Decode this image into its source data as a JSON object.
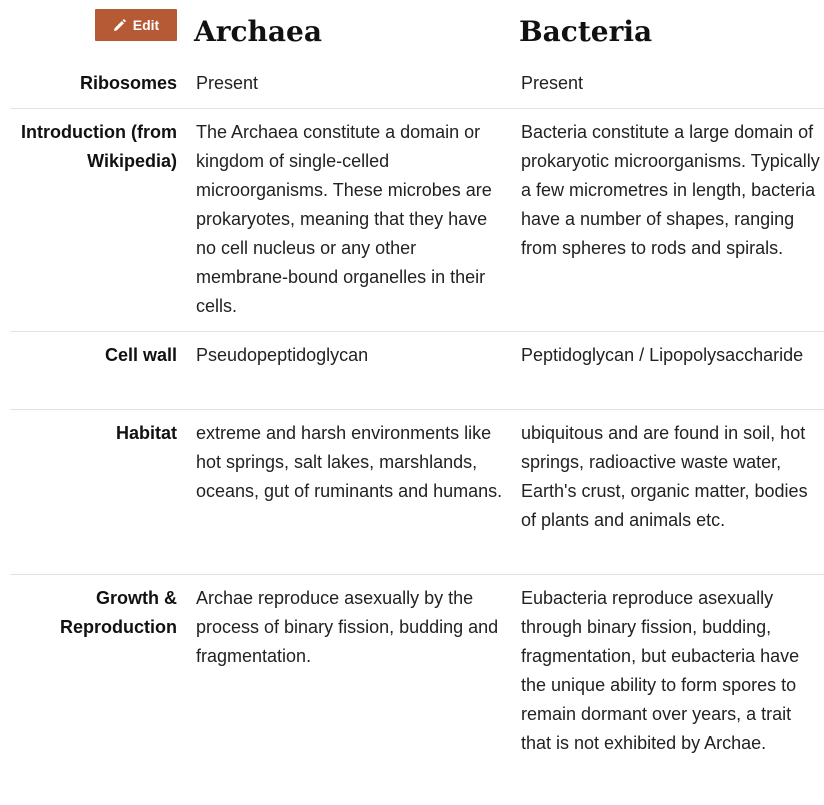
{
  "toolbar": {
    "edit_label": "Edit",
    "edit_icon": "pencil-icon",
    "edit_color": "#b65a36"
  },
  "headers": {
    "archaea": "Archaea",
    "bacteria": "Bacteria"
  },
  "rows": [
    {
      "label": "Ribosomes",
      "archaea": "Present",
      "bacteria": "Present"
    },
    {
      "label": "Introduction (from Wikipedia)",
      "archaea": "The Archaea constitute a domain or kingdom of single-celled microorganisms. These microbes are prokaryotes, meaning that they have no cell nucleus or any other membrane-bound organelles in their cells.",
      "bacteria": "Bacteria constitute a large domain of prokaryotic microorganisms. Typically a few micrometres in length, bacteria have a number of shapes, ranging from spheres to rods and spirals."
    },
    {
      "label": "Cell wall",
      "archaea": "Pseudopeptidoglycan",
      "bacteria": "Peptidoglycan / Lipopolysaccharide"
    },
    {
      "label": "Habitat",
      "archaea": "extreme and harsh environments like hot springs, salt lakes, marshlands, oceans, gut of ruminants and humans.",
      "bacteria": "ubiquitous and are found in soil, hot springs, radioactive waste water, Earth's crust, organic matter, bodies of plants and animals etc."
    },
    {
      "label": "Growth & Reproduction",
      "archaea": "Archae reproduce asexually by the process of binary fission, budding and fragmentation.",
      "bacteria": "Eubacteria reproduce asexually through binary fission, budding, fragmentation, but eubacteria have the unique ability to form spores to remain dormant over years, a trait that is not exhibited by Archae."
    }
  ]
}
